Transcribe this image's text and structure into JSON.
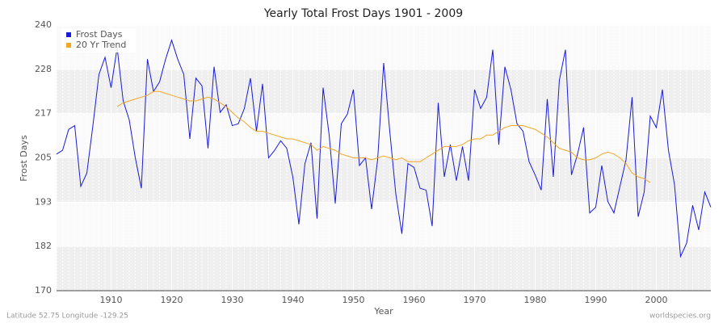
{
  "chart_data": {
    "type": "line",
    "title": "Yearly Total Frost Days 1901 - 2009",
    "x_label": "Year",
    "y_label": "Frost Days",
    "footer_left": "Latitude 52.75 Longitude -129.25",
    "footer_right": "worldspecies.org",
    "legend": "top-left",
    "grid": true,
    "xlim": [
      1901,
      2009
    ],
    "xticks": [
      1910,
      1920,
      1930,
      1940,
      1950,
      1960,
      1970,
      1980,
      1990,
      2000
    ],
    "ylim": [
      170,
      240
    ],
    "yticks": [
      170,
      {
        "value": 181.67,
        "label": "182"
      },
      {
        "value": 193.33,
        "label": "193"
      },
      205,
      {
        "value": 216.67,
        "label": "217"
      },
      {
        "value": 228.33,
        "label": "228"
      },
      240
    ],
    "x": [
      1901,
      1902,
      1903,
      1904,
      1905,
      1906,
      1907,
      1908,
      1909,
      1910,
      1911,
      1912,
      1913,
      1914,
      1915,
      1916,
      1917,
      1918,
      1919,
      1920,
      1921,
      1922,
      1923,
      1924,
      1925,
      1926,
      1927,
      1928,
      1929,
      1930,
      1931,
      1932,
      1933,
      1934,
      1935,
      1936,
      1937,
      1938,
      1939,
      1940,
      1941,
      1942,
      1943,
      1944,
      1945,
      1946,
      1947,
      1948,
      1949,
      1950,
      1951,
      1952,
      1953,
      1954,
      1955,
      1956,
      1957,
      1958,
      1959,
      1960,
      1961,
      1962,
      1963,
      1964,
      1965,
      1966,
      1967,
      1968,
      1969,
      1970,
      1971,
      1972,
      1973,
      1974,
      1975,
      1976,
      1977,
      1978,
      1979,
      1980,
      1981,
      1982,
      1983,
      1984,
      1985,
      1986,
      1987,
      1988,
      1989,
      1990,
      1991,
      1992,
      1993,
      1994,
      1995,
      1996,
      1997,
      1998,
      1999,
      2000,
      2001,
      2002,
      2003,
      2004,
      2005,
      2006,
      2007,
      2008,
      2009
    ],
    "series": [
      {
        "name": "Frost Days",
        "color": "#1a1adb",
        "values": [
          206,
          207,
          212.5,
          213.5,
          197.5,
          201,
          213.5,
          227,
          231.5,
          223.5,
          234,
          220,
          215,
          205,
          197,
          231,
          222.5,
          225,
          231,
          236,
          231,
          227,
          210,
          226,
          224,
          207.5,
          229,
          217,
          219,
          213.5,
          214,
          218,
          226,
          212,
          224.5,
          205,
          207,
          209.5,
          207.5,
          200,
          187.5,
          203.5,
          209,
          189,
          223.5,
          211,
          193,
          214,
          216.5,
          223,
          203,
          205,
          191.5,
          204.5,
          230,
          212,
          195.5,
          185,
          203.5,
          202.5,
          197,
          196.5,
          187,
          219.5,
          200,
          208.5,
          199,
          208,
          199,
          223,
          218,
          221,
          233.5,
          208.5,
          229,
          223,
          214,
          212,
          204,
          200.5,
          196.5,
          220.5,
          200,
          225.5,
          233.5,
          200.5,
          206,
          213,
          190.5,
          192,
          203,
          193.5,
          190.5,
          197.5,
          204.5,
          221,
          189.5,
          196,
          216,
          213,
          223,
          207,
          198,
          179,
          182.5,
          192.5,
          186,
          196,
          192
        ]
      },
      {
        "name": "20 Yr Trend",
        "color": "#f5a623",
        "values": [
          null,
          null,
          null,
          null,
          null,
          null,
          null,
          null,
          null,
          null,
          218.5,
          219.5,
          220,
          220.5,
          221,
          221.5,
          222.5,
          222.5,
          222,
          221.5,
          221,
          220.5,
          220,
          220,
          220.5,
          221,
          220.5,
          219.5,
          218.5,
          217,
          215.5,
          214.5,
          213,
          212,
          212,
          211.5,
          211,
          210.5,
          210,
          210,
          209.5,
          209,
          208.5,
          207,
          208,
          207.5,
          207,
          206,
          205.5,
          205,
          205,
          205,
          204.5,
          205,
          205.5,
          205,
          204.5,
          205,
          204,
          204,
          204,
          205,
          206,
          207,
          208,
          208,
          208,
          208.5,
          209.5,
          210,
          210,
          211,
          211,
          212,
          213,
          213.5,
          213.5,
          213.5,
          213,
          212.5,
          211.5,
          210.5,
          209,
          207.5,
          207,
          206.5,
          205,
          204.5,
          204.5,
          205,
          206,
          206.5,
          206,
          205,
          203.5,
          201,
          200,
          199.5,
          198.5,
          null,
          null,
          null,
          null,
          null,
          null,
          null,
          null,
          null,
          null
        ]
      }
    ]
  }
}
